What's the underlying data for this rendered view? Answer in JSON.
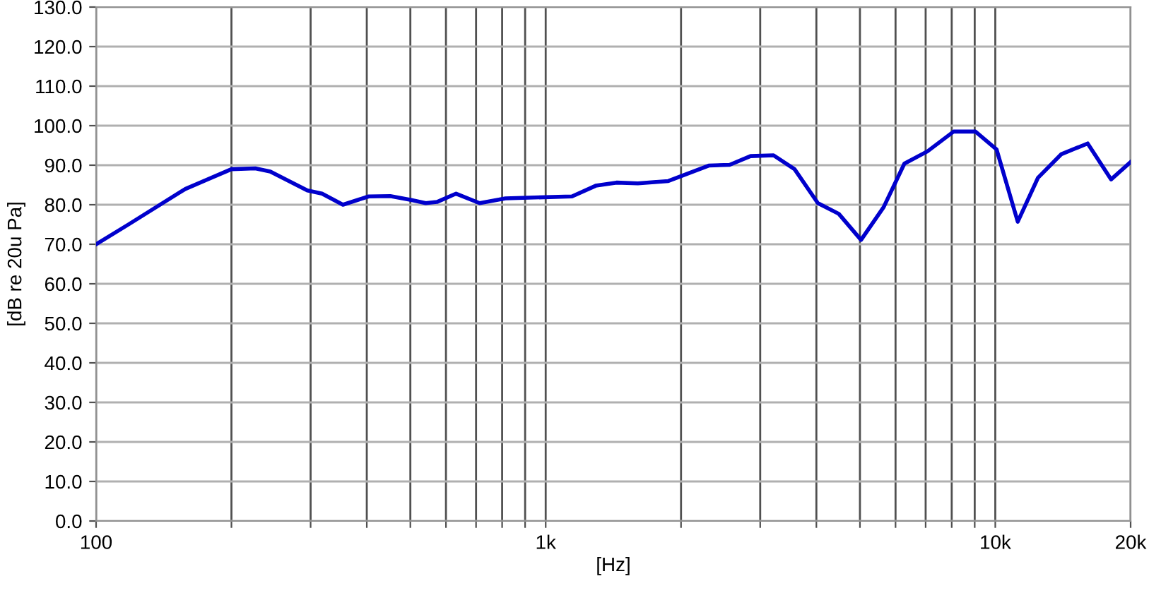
{
  "chart_data": {
    "type": "line",
    "xlabel": "[Hz]",
    "ylabel": "[dB re 20u Pa]",
    "log": "x",
    "grid": true,
    "marker": "none",
    "line_style": "solid",
    "x": [
      100,
      118,
      158,
      200,
      226,
      244,
      295,
      318,
      354,
      404,
      451,
      502,
      541,
      573,
      632,
      713,
      814,
      1144,
      1292,
      1437,
      1603,
      1874,
      2305,
      2565,
      2855,
      3212,
      3577,
      4031,
      4486,
      5028,
      5646,
      6278,
      7066,
      8078,
      9034,
      10065,
      11218,
      12442,
      14030,
      16050,
      18100,
      20000
    ],
    "series": [
      {
        "color": "#0000cc",
        "values": [
          70.0,
          75.0,
          84.0,
          89.0,
          89.2,
          88.4,
          83.6,
          82.8,
          80.0,
          82.1,
          82.2,
          81.2,
          80.4,
          80.7,
          82.8,
          80.4,
          81.6,
          82.1,
          84.8,
          85.6,
          85.4,
          86.0,
          89.9,
          90.1,
          92.3,
          92.5,
          89.0,
          80.4,
          77.7,
          71.1,
          79.4,
          90.4,
          93.5,
          98.5,
          98.5,
          94.0,
          75.7,
          86.8,
          92.8,
          95.5,
          86.4,
          90.8
        ]
      }
    ],
    "xlim": [
      100,
      20000
    ],
    "xticks": [
      {
        "value": 100,
        "label": "100"
      },
      {
        "value": 200,
        "label": null
      },
      {
        "value": 300,
        "label": null
      },
      {
        "value": 400,
        "label": null
      },
      {
        "value": 500,
        "label": null
      },
      {
        "value": 600,
        "label": null
      },
      {
        "value": 700,
        "label": null
      },
      {
        "value": 800,
        "label": null
      },
      {
        "value": 900,
        "label": null
      },
      {
        "value": 1000,
        "label": "1k"
      },
      {
        "value": 2000,
        "label": null
      },
      {
        "value": 3000,
        "label": null
      },
      {
        "value": 4000,
        "label": null
      },
      {
        "value": 5000,
        "label": null
      },
      {
        "value": 6000,
        "label": null
      },
      {
        "value": 7000,
        "label": null
      },
      {
        "value": 8000,
        "label": null
      },
      {
        "value": 9000,
        "label": null
      },
      {
        "value": 10000,
        "label": "10k"
      },
      {
        "value": 20000,
        "label": "20k"
      }
    ],
    "ylim": [
      0,
      130
    ],
    "yticks": [
      {
        "value": 0,
        "label": "0.0"
      },
      {
        "value": 10,
        "label": "10.0"
      },
      {
        "value": 20,
        "label": "20.0"
      },
      {
        "value": 30,
        "label": "30.0"
      },
      {
        "value": 40,
        "label": "40.0"
      },
      {
        "value": 50,
        "label": "50.0"
      },
      {
        "value": 60,
        "label": "60.0"
      },
      {
        "value": 70,
        "label": "70.0"
      },
      {
        "value": 80,
        "label": "80.0"
      },
      {
        "value": 90,
        "label": "90.0"
      },
      {
        "value": 100,
        "label": "100.0"
      },
      {
        "value": 110,
        "label": "110.0"
      },
      {
        "value": 120,
        "label": "120.0"
      },
      {
        "value": 130,
        "label": "130.0"
      }
    ]
  }
}
